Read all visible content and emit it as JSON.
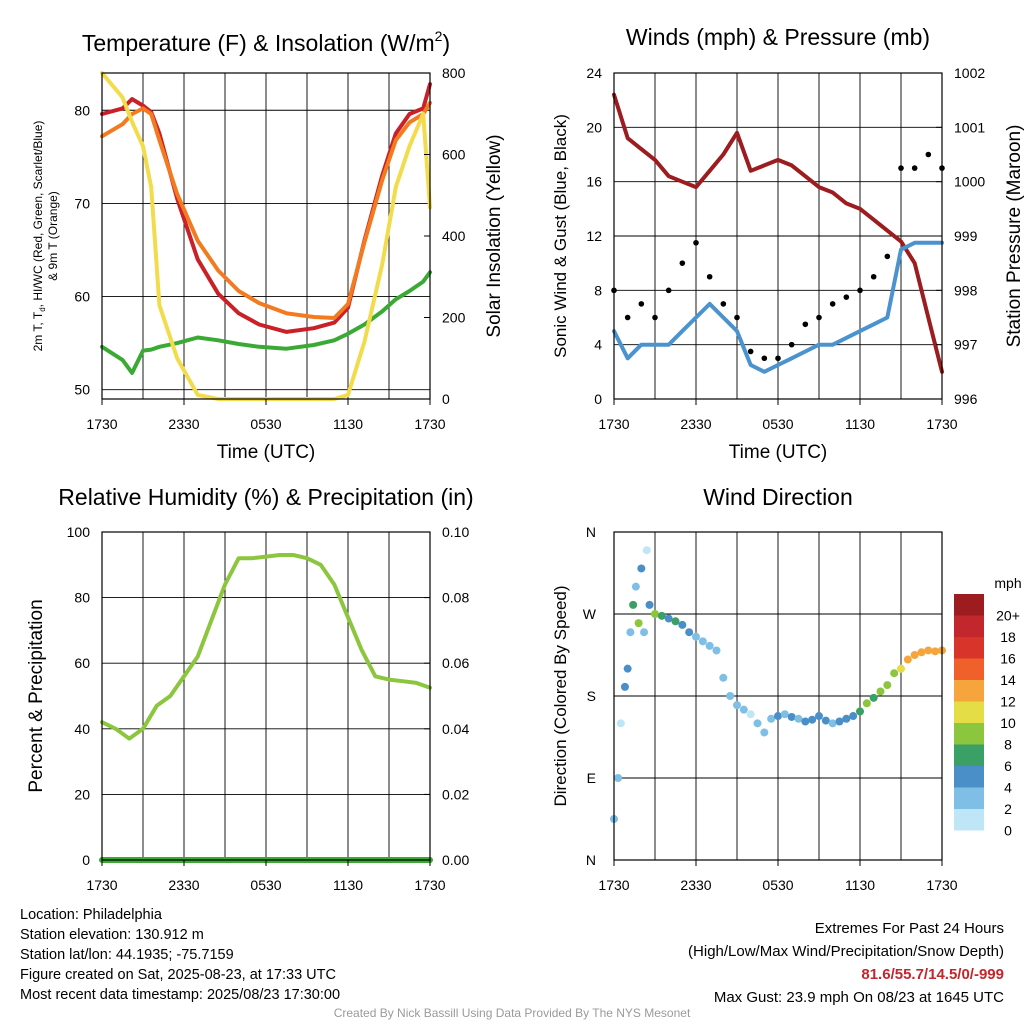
{
  "x_ticks": [
    "1730",
    "2330",
    "0530",
    "1130",
    "1730"
  ],
  "chart_data": [
    {
      "type": "line",
      "title": "Temperature (F) & Insolation (W/m",
      "title_sup": "2",
      "title_end": ")",
      "xlabel": "Time (UTC)",
      "ylabel_line1": "2m T, T",
      "ylabel_sub": "d",
      "ylabel_line1_end": ", HI/WC (Red, Green, Scarlet/Blue)",
      "ylabel_line2": "& 9m T (Orange)",
      "ylabel_right": "Solar Insolation (Yellow)",
      "ylim": [
        49,
        84
      ],
      "yticks": [
        "50",
        "60",
        "70",
        "80"
      ],
      "y2lim": [
        0,
        800
      ],
      "y2ticks": [
        "0",
        "200",
        "400",
        "600",
        "800"
      ],
      "x_hours": [
        0,
        1.5,
        2.2,
        3,
        3.6,
        4.2,
        5.5,
        7,
        8.5,
        10,
        11.5,
        13.5,
        15.5,
        17,
        18,
        19.2,
        20.5,
        21.5,
        22.5,
        23.5,
        24
      ],
      "series": [
        {
          "color": "#ca2027",
          "y2": false,
          "values": [
            79.6,
            80.2,
            81.2,
            80.5,
            79.8,
            77.5,
            70.5,
            64,
            60.3,
            58.2,
            57,
            56.2,
            56.6,
            57.2,
            58.8,
            66,
            73,
            77.5,
            79.6,
            80.2,
            82.8
          ]
        },
        {
          "color": "#f47a20",
          "y2": false,
          "values": [
            77.2,
            78.5,
            79.6,
            80.2,
            79.6,
            76.8,
            71,
            66,
            62.8,
            60.6,
            59.3,
            58.2,
            57.8,
            57.7,
            59.2,
            65.8,
            72.5,
            76.8,
            78.7,
            79.6,
            80.8
          ]
        },
        {
          "color": "#3aaa35",
          "y2": false,
          "values": [
            54.6,
            53.2,
            51.8,
            54.2,
            54.3,
            54.6,
            55,
            55.6,
            55.3,
            54.9,
            54.6,
            54.4,
            54.8,
            55.3,
            56,
            57,
            58.4,
            59.7,
            60.6,
            61.6,
            62.6
          ]
        },
        {
          "color": "#f2dc4b",
          "y2": true,
          "values": [
            800,
            740,
            680,
            620,
            520,
            230,
            100,
            10,
            0,
            0,
            0,
            0,
            0,
            0,
            10,
            140,
            330,
            520,
            620,
            700,
            470
          ]
        }
      ]
    },
    {
      "type": "line",
      "title": "Winds (mph) & Pressure (mb)",
      "xlabel": "Time (UTC)",
      "ylabel": "Sonic Wind & Gust (Blue, Black)",
      "ylabel_right": "Station Pressure (Maroon)",
      "ylim": [
        0,
        24
      ],
      "yticks": [
        "0",
        "4",
        "8",
        "12",
        "16",
        "20",
        "24"
      ],
      "y2lim": [
        996,
        1002
      ],
      "y2ticks": [
        "996",
        "997",
        "998",
        "999",
        "1000",
        "1001",
        "1002"
      ],
      "x_hours": [
        0,
        1,
        2,
        3,
        4,
        5,
        6,
        7,
        8,
        9,
        10,
        11,
        12,
        13,
        14,
        15,
        16,
        17,
        18,
        19,
        20,
        21,
        22,
        23,
        24
      ],
      "series": [
        {
          "color": "#9c1c1f",
          "y2": true,
          "values": [
            1001.6,
            1000.8,
            1000.6,
            1000.4,
            1000.1,
            1000,
            999.9,
            1000.2,
            1000.5,
            1000.9,
            1000.2,
            1000.3,
            1000.4,
            1000.3,
            1000.1,
            999.9,
            999.8,
            999.6,
            999.5,
            999.3,
            999.1,
            998.9,
            998.5,
            997.5,
            996.5
          ]
        },
        {
          "color": "#4b93cf",
          "y2": false,
          "values": [
            5,
            3,
            4,
            4,
            4,
            5,
            6,
            7,
            6,
            5,
            2.5,
            2,
            2.5,
            3,
            3.5,
            4,
            4,
            4.5,
            5,
            5.5,
            6,
            11,
            11.5,
            11.5,
            11.5
          ]
        },
        {
          "color": "#000000",
          "y2": false,
          "points": true,
          "values": [
            8,
            6,
            7,
            6,
            8,
            10,
            11.5,
            9,
            7,
            6,
            3.5,
            3,
            3,
            4,
            5.5,
            6,
            7,
            7.5,
            8,
            9,
            10.5,
            17,
            17,
            18,
            17
          ]
        }
      ]
    },
    {
      "type": "line",
      "title": "Relative Humidity (%) & Precipitation (in)",
      "ylabel": "Percent & Precipitation",
      "ylim": [
        0,
        100
      ],
      "yticks": [
        "0",
        "20",
        "40",
        "60",
        "80",
        "100"
      ],
      "y2lim": [
        0,
        0.1
      ],
      "y2ticks": [
        "0.00",
        "0.02",
        "0.04",
        "0.06",
        "0.08",
        "0.10"
      ],
      "x_hours": [
        0,
        1,
        2,
        3,
        4,
        5,
        6,
        7,
        8,
        9,
        10,
        11,
        12,
        13,
        14,
        15,
        16,
        17,
        18,
        19,
        20,
        21,
        22,
        23,
        24
      ],
      "series": [
        {
          "color": "#8cc63f",
          "y2": false,
          "values": [
            42,
            40,
            37,
            40,
            47,
            50,
            56,
            62,
            73,
            84,
            92,
            92,
            92.5,
            93,
            93,
            92,
            90,
            84,
            74,
            64,
            56,
            55,
            54.5,
            54,
            52.5
          ]
        },
        {
          "color": "#3aaa35",
          "y2": true,
          "values": [
            0,
            0,
            0,
            0,
            0,
            0,
            0,
            0,
            0,
            0,
            0,
            0,
            0,
            0,
            0,
            0,
            0,
            0,
            0,
            0,
            0,
            0,
            0,
            0,
            0
          ]
        }
      ]
    },
    {
      "type": "scatter",
      "title": "Wind Direction",
      "ylabel": "Direction (Colored By Speed)",
      "ylim": [
        0,
        360
      ],
      "yticks": [
        "N",
        "E",
        "S",
        "W",
        "N"
      ],
      "legend_title": "mph",
      "legend_labels": [
        "0",
        "2",
        "4",
        "6",
        "8",
        "10",
        "12",
        "14",
        "16",
        "18",
        "20+"
      ],
      "legend_colors": [
        "#bfe6f7",
        "#7fbfe6",
        "#4b8fc8",
        "#3aa066",
        "#8cc63f",
        "#e4dd45",
        "#f6a43c",
        "#f0602a",
        "#d9342a",
        "#c1272d",
        "#9c1c1f"
      ],
      "x_hours": [
        0,
        0.3,
        0.5,
        0.8,
        1.0,
        1.2,
        1.4,
        1.6,
        1.8,
        2.0,
        2.2,
        2.4,
        2.6,
        3,
        3.5,
        4,
        4.5,
        5,
        5.5,
        6,
        6.5,
        7,
        7.5,
        8,
        8.5,
        9,
        9.5,
        10,
        10.5,
        11,
        11.5,
        12,
        12.5,
        13,
        13.5,
        14,
        14.5,
        15,
        15.5,
        16,
        16.5,
        17,
        17.5,
        18,
        18.5,
        19,
        19.5,
        20,
        20.5,
        21,
        21.5,
        22,
        22.5,
        23,
        23.5,
        24
      ],
      "values": [
        45,
        90,
        150,
        190,
        210,
        250,
        280,
        300,
        260,
        320,
        250,
        340,
        280,
        270,
        268,
        265,
        262,
        258,
        250,
        245,
        240,
        235,
        230,
        200,
        180,
        170,
        165,
        160,
        150,
        140,
        155,
        158,
        160,
        157,
        155,
        152,
        154,
        158,
        153,
        150,
        152,
        155,
        158,
        163,
        172,
        178,
        185,
        192,
        205,
        210,
        220,
        225,
        228,
        230,
        229,
        230
      ],
      "speeds": [
        2,
        1,
        0,
        3,
        4,
        2,
        6,
        1,
        8,
        3,
        1,
        0,
        4,
        7,
        6,
        4,
        5,
        3,
        3,
        2,
        2,
        1,
        1,
        2,
        2,
        1,
        1,
        0,
        2,
        1,
        2,
        3,
        2,
        3,
        2,
        3,
        4,
        3,
        3,
        2,
        3,
        3,
        4,
        5,
        7,
        6,
        8,
        7,
        8,
        10,
        12,
        11,
        12,
        12,
        11,
        12
      ]
    }
  ],
  "info_left": [
    "Location: Philadelphia",
    "Station elevation: 130.912 m",
    "Station lat/lon: 44.1935; -75.7159",
    "Figure created on Sat, 2025-08-23, at 17:33 UTC",
    "Most recent data timestamp: 2025/08/23 17:30:00"
  ],
  "info_right": {
    "heading": "Extremes For Past 24 Hours",
    "subheading": "(High/Low/Max Wind/Precipitation/Snow Depth)",
    "values": "81.6/55.7/14.5/0/-999",
    "max_gust": "Max Gust: 23.9 mph On 08/23 at 1645 UTC"
  },
  "credit": "Created By Nick Bassill Using Data Provided By The NYS Mesonet"
}
